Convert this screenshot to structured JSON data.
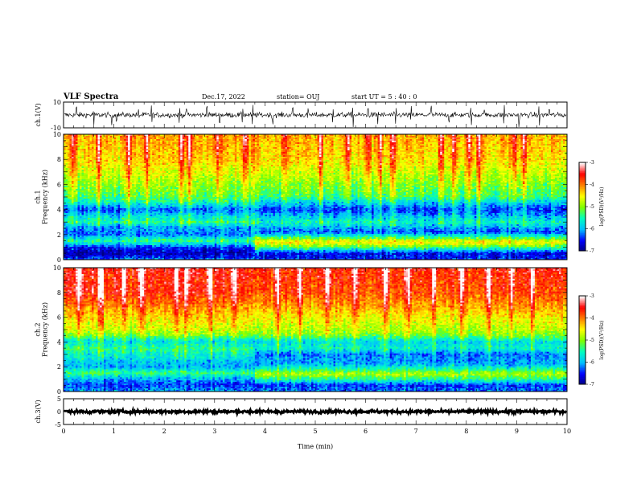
{
  "header": {
    "title": "VLF Spectra",
    "date": "Dec.17, 2022",
    "station": "station= OUJ",
    "start": "start  UT =   5  : 40 : 0"
  },
  "colors": {
    "spectrum_scale": [
      "#00007f",
      "#0000ff",
      "#00bfff",
      "#00ffbf",
      "#7fff00",
      "#ffff00",
      "#ff7f00",
      "#ff0000",
      "#ffffff"
    ]
  },
  "chart_data": [
    {
      "type": "line",
      "id": "ch1-waveform",
      "ylabel": "ch.1(V)",
      "ylim": [
        -10,
        10
      ],
      "yticks": [
        "10",
        "-10"
      ],
      "xlim": [
        0,
        10
      ],
      "baseline": 0,
      "noise_band": [
        -2,
        2
      ],
      "spikes_min": [
        0.25,
        0.6,
        0.95,
        1.05,
        1.5,
        1.75,
        2.3,
        2.45,
        2.85,
        3.1,
        3.55,
        3.75,
        4.15,
        4.55,
        4.85,
        5.35,
        5.75,
        6.05,
        6.25,
        6.6,
        6.9,
        7.3,
        7.65,
        8.1,
        8.35,
        8.75,
        9.05,
        9.45,
        9.65
      ]
    },
    {
      "type": "heatmap",
      "id": "ch1-spectrogram",
      "ylabel": "ch.1\nFrequency (kHz)",
      "ylim": [
        0,
        10
      ],
      "yticks": [
        "0",
        "2",
        "4",
        "6",
        "8",
        "10"
      ],
      "xlim": [
        0,
        10
      ],
      "colorbar": {
        "label": "log(PSD)(V²/Hz)",
        "range": [
          -7,
          -3
        ],
        "ticks": [
          "-3",
          "-4",
          "-5",
          "-6",
          "-7"
        ]
      },
      "profile_before": [
        [
          0,
          -6.2
        ],
        [
          0.5,
          -6.8
        ],
        [
          1.0,
          -6.4
        ],
        [
          1.5,
          -5.3
        ],
        [
          2.0,
          -6.2
        ],
        [
          2.6,
          -6.0
        ],
        [
          3.0,
          -5.4
        ],
        [
          3.5,
          -5.8
        ],
        [
          4.0,
          -6.3
        ],
        [
          4.6,
          -5.5
        ],
        [
          5.0,
          -5.2
        ],
        [
          6.0,
          -4.9
        ],
        [
          7.0,
          -4.6
        ],
        [
          8.0,
          -4.3
        ],
        [
          9.0,
          -4.2
        ],
        [
          10,
          -4.1
        ]
      ],
      "profile_after": [
        [
          0,
          -6.4
        ],
        [
          0.5,
          -6.6
        ],
        [
          1.0,
          -5.2
        ],
        [
          1.4,
          -4.4
        ],
        [
          1.8,
          -5.4
        ],
        [
          2.2,
          -6.3
        ],
        [
          3.0,
          -5.6
        ],
        [
          4.0,
          -6.4
        ],
        [
          4.6,
          -5.8
        ],
        [
          5.0,
          -5.3
        ],
        [
          6.0,
          -5.0
        ],
        [
          7.0,
          -4.7
        ],
        [
          8.0,
          -4.4
        ],
        [
          9.0,
          -4.3
        ],
        [
          10,
          -4.2
        ]
      ],
      "change_time_min": 3.8,
      "bursts_min": [
        0.2,
        0.7,
        1.3,
        1.65,
        2.35,
        2.5,
        3.05,
        3.6,
        4.4,
        5.1,
        5.65,
        6.05,
        6.3,
        6.55,
        7.5,
        7.75,
        8.05,
        8.25,
        8.95,
        9.15
      ]
    },
    {
      "type": "heatmap",
      "id": "ch2-spectrogram",
      "ylabel": "ch.2\nFrequency (kHz)",
      "ylim": [
        0,
        10
      ],
      "yticks": [
        "0",
        "2",
        "4",
        "6",
        "8",
        "10"
      ],
      "xlim": [
        0,
        10
      ],
      "colorbar": {
        "label": "log(PSD)(V²/Hz)",
        "range": [
          -7,
          -3
        ],
        "ticks": [
          "-3",
          "-4",
          "-5",
          "-6",
          "-7"
        ]
      },
      "profile_before": [
        [
          0,
          -6.0
        ],
        [
          0.5,
          -6.4
        ],
        [
          1.0,
          -6.0
        ],
        [
          1.5,
          -5.3
        ],
        [
          2.0,
          -6.0
        ],
        [
          2.6,
          -5.8
        ],
        [
          3.0,
          -5.6
        ],
        [
          3.5,
          -5.4
        ],
        [
          4.0,
          -5.8
        ],
        [
          4.6,
          -5.0
        ],
        [
          5.0,
          -4.7
        ],
        [
          6.0,
          -4.4
        ],
        [
          7.0,
          -4.0
        ],
        [
          8.0,
          -3.6
        ],
        [
          9.0,
          -3.6
        ],
        [
          10,
          -3.5
        ]
      ],
      "profile_after": [
        [
          0,
          -6.2
        ],
        [
          0.5,
          -6.4
        ],
        [
          1.0,
          -5.4
        ],
        [
          1.4,
          -4.8
        ],
        [
          1.8,
          -5.4
        ],
        [
          2.2,
          -6.0
        ],
        [
          3.0,
          -6.2
        ],
        [
          3.5,
          -5.6
        ],
        [
          4.0,
          -5.8
        ],
        [
          4.6,
          -5.0
        ],
        [
          5.0,
          -4.8
        ],
        [
          6.0,
          -4.5
        ],
        [
          7.0,
          -4.1
        ],
        [
          8.0,
          -3.8
        ],
        [
          9.0,
          -3.7
        ],
        [
          10,
          -3.6
        ]
      ],
      "change_time_min": 3.8,
      "bursts_min": [
        0.3,
        0.75,
        1.2,
        1.55,
        2.25,
        2.45,
        2.9,
        3.4,
        4.25,
        4.7,
        5.25,
        5.8,
        6.4,
        6.85,
        7.35,
        7.9,
        8.45,
        8.9,
        9.3
      ]
    },
    {
      "type": "line",
      "id": "ch3-waveform",
      "ylabel": "ch.3(V)",
      "ylim": [
        -5,
        5
      ],
      "yticks": [
        "5",
        "0",
        "-5"
      ],
      "xlim": [
        0,
        10
      ],
      "baseline": 0,
      "noise_band": [
        -0.6,
        0.6
      ],
      "xlabel": "Time (min)",
      "xticks": [
        "0",
        "1",
        "2",
        "3",
        "4",
        "5",
        "6",
        "7",
        "8",
        "9",
        "10"
      ]
    }
  ]
}
